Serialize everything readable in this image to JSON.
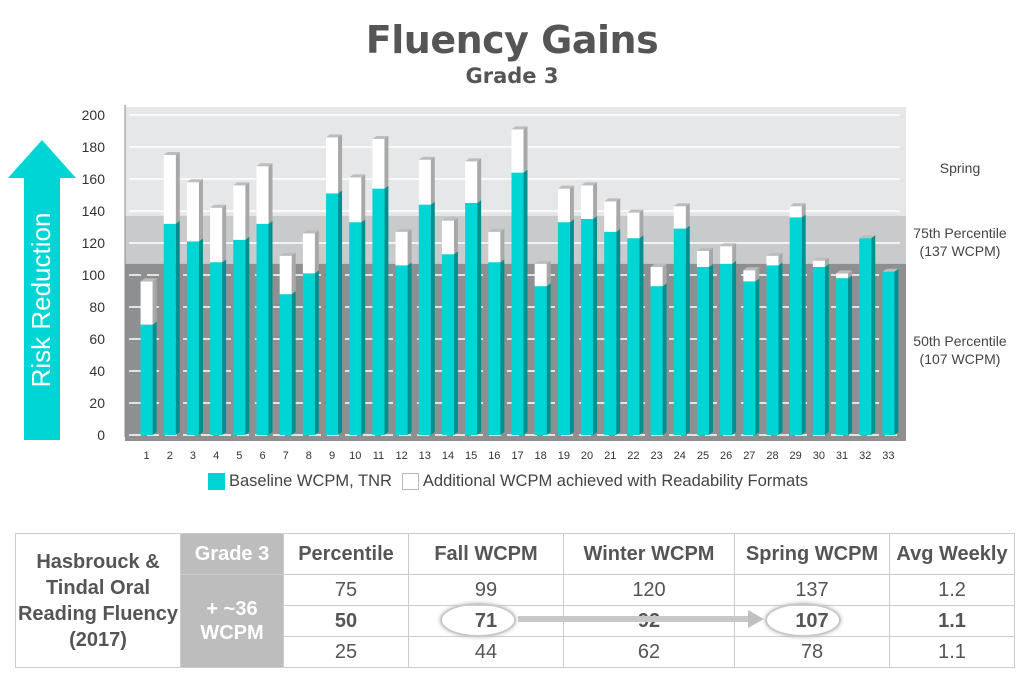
{
  "chart_data": {
    "type": "bar",
    "stacked": true,
    "title": "Fluency Gains",
    "subtitle": "Grade 3",
    "ylabel": "Risk Reduction",
    "ylim": [
      0,
      200
    ],
    "yticks": [
      0,
      20,
      40,
      60,
      80,
      100,
      120,
      140,
      160,
      180,
      200
    ],
    "categories": [
      "1",
      "2",
      "3",
      "4",
      "5",
      "6",
      "7",
      "8",
      "9",
      "10",
      "11",
      "12",
      "13",
      "14",
      "15",
      "16",
      "17",
      "18",
      "19",
      "20",
      "21",
      "22",
      "23",
      "24",
      "25",
      "26",
      "27",
      "28",
      "29",
      "30",
      "31",
      "32",
      "33"
    ],
    "series": [
      {
        "name": "Baseline WCPM, TNR",
        "color": "#00d5d5",
        "values": [
          69,
          132,
          121,
          108,
          122,
          132,
          88,
          101,
          151,
          133,
          154,
          106,
          144,
          113,
          145,
          108,
          164,
          93,
          133,
          135,
          127,
          123,
          93,
          129,
          105,
          107,
          96,
          106,
          136,
          105,
          98,
          123,
          102
        ]
      },
      {
        "name": "Additional WCPM achieved with Readability Formats",
        "color": "#ffffff",
        "values": [
          27,
          43,
          37,
          34,
          34,
          36,
          24,
          25,
          35,
          28,
          31,
          21,
          28,
          21,
          26,
          19,
          27,
          14,
          21,
          21,
          19,
          16,
          12,
          14,
          10,
          11,
          7,
          6,
          7,
          4,
          3,
          0,
          0
        ]
      }
    ],
    "bands": [
      {
        "label": "Spring",
        "from": 137,
        "to": 200,
        "color": "#e6e7e9"
      },
      {
        "label": "75th Percentile",
        "sublabel": "(137 WCPM)",
        "from": 107,
        "to": 137,
        "color": "#c9cacc"
      },
      {
        "label": "50th Percentile",
        "sublabel": "(107 WCPM)",
        "from": 0,
        "to": 107,
        "color": "#8e8f91"
      }
    ],
    "grid": true,
    "legend_position": "bottom"
  },
  "table": {
    "source": "Hasbrouck & Tindal Oral Reading Fluency (2017)",
    "grade": "Grade 3",
    "gain": "+ ~36 WCPM",
    "headers": [
      "Percentile",
      "Fall WCPM",
      "Winter WCPM",
      "Spring WCPM",
      "Avg Weekly"
    ],
    "rows": [
      [
        "75",
        "99",
        "120",
        "137",
        "1.2"
      ],
      [
        "50",
        "71",
        "92",
        "107",
        "1.1"
      ],
      [
        "25",
        "44",
        "62",
        "78",
        "1.1"
      ]
    ]
  }
}
